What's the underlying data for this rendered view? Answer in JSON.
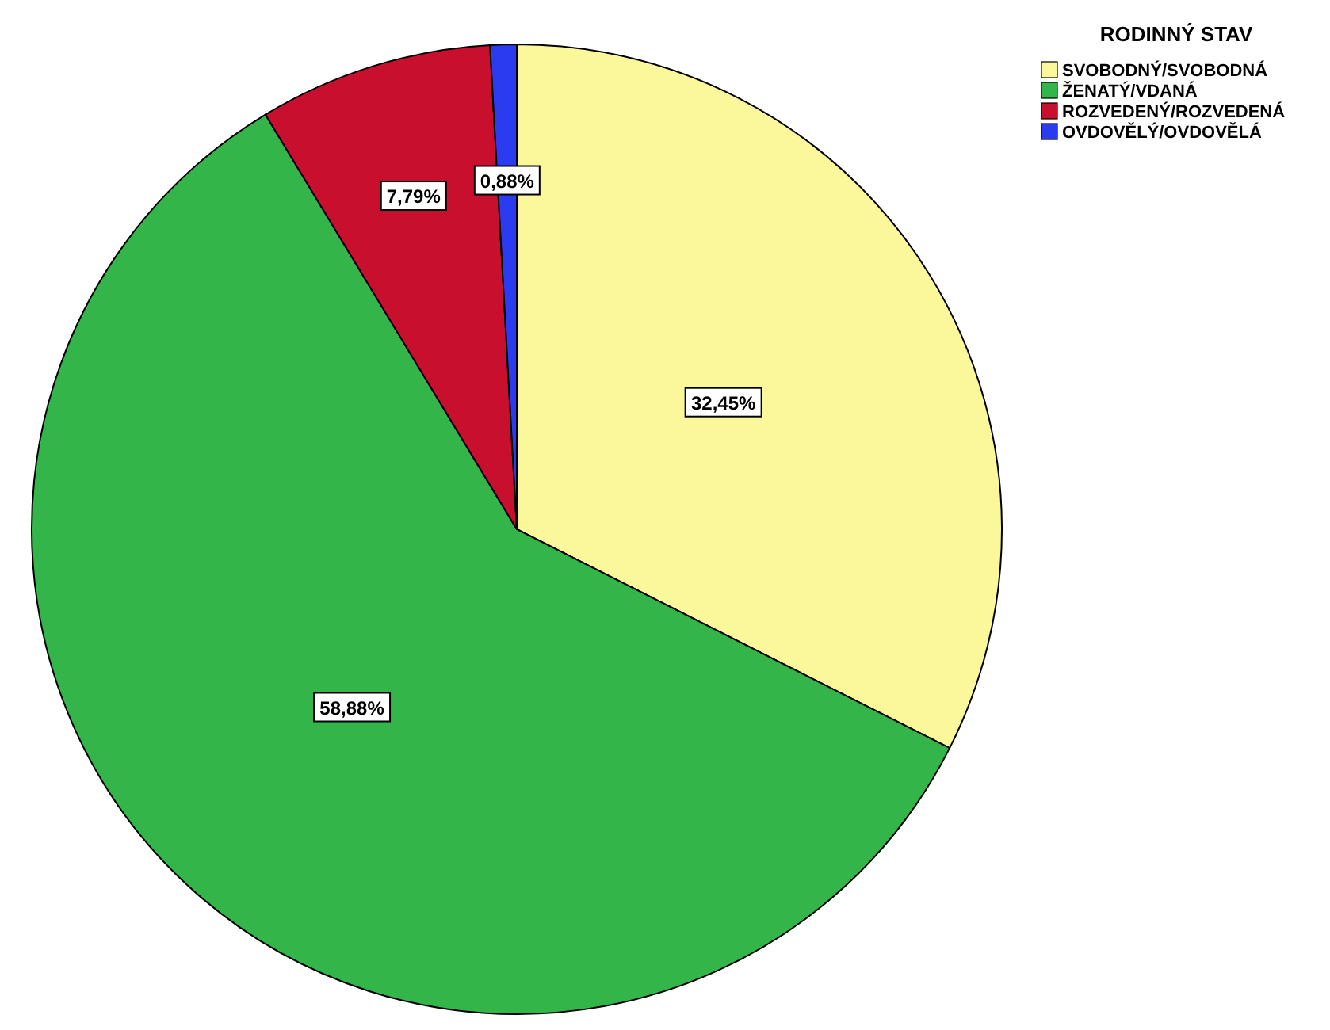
{
  "chart_data": {
    "type": "pie",
    "legend_title": "RODINNÝ STAV",
    "legend": "top right",
    "categories": [
      "SVOBODNÝ/SVOBODNÁ",
      "ŽENATÝ/VDANÁ",
      "ROZVEDENÝ/ROZVEDENÁ",
      "OVDOVĚLÝ/OVDOVĚLÁ"
    ],
    "values": [
      32.45,
      58.88,
      7.79,
      0.88
    ],
    "colors": [
      "#fbf89c",
      "#33b54a",
      "#c8102e",
      "#2b3cf0"
    ],
    "value_labels": [
      "32,45%",
      "58,88%",
      "7,79%",
      "0,88%"
    ]
  }
}
